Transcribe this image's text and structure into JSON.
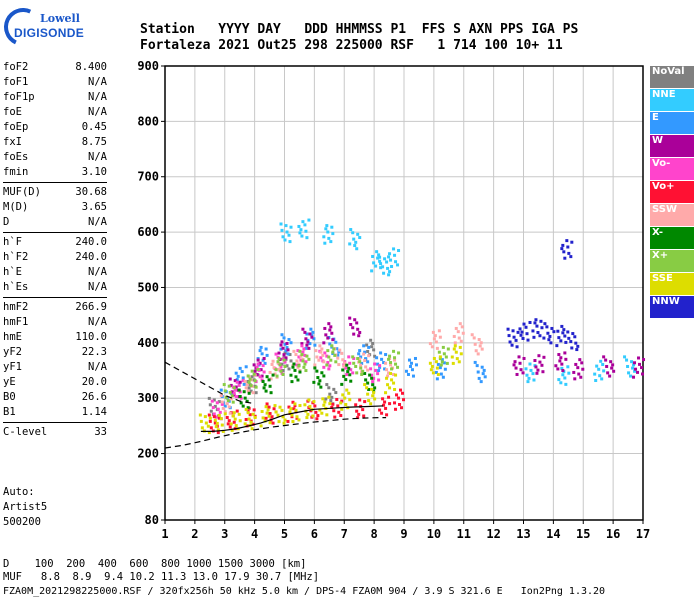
{
  "logo": {
    "top": "Lowell",
    "main": "DIGISONDE"
  },
  "header": {
    "row1": "Station   YYYY DAY   DDD HHMMSS P1  FFS S AXN PPS IGA PS",
    "row2": "Fortaleza 2021 Out25 298 225000 RSF   1 714 100 10+ 11"
  },
  "params": [
    {
      "k": "foF2",
      "v": "8.400"
    },
    {
      "k": "foF1",
      "v": "N/A"
    },
    {
      "k": "foF1p",
      "v": "N/A"
    },
    {
      "k": "foE",
      "v": "N/A"
    },
    {
      "k": "foEp",
      "v": "0.45"
    },
    {
      "k": "fxI",
      "v": "8.75"
    },
    {
      "k": "foEs",
      "v": "N/A"
    },
    {
      "k": "fmin",
      "v": "3.10"
    },
    {
      "rule": true
    },
    {
      "k": "MUF(D)",
      "v": "30.68"
    },
    {
      "k": "M(D)",
      "v": "3.65"
    },
    {
      "k": "D",
      "v": "N/A"
    },
    {
      "rule": true
    },
    {
      "k": "h`F",
      "v": "240.0"
    },
    {
      "k": "h`F2",
      "v": "240.0"
    },
    {
      "k": "h`E",
      "v": "N/A"
    },
    {
      "k": "h`Es",
      "v": "N/A"
    },
    {
      "rule": true
    },
    {
      "k": "hmF2",
      "v": "266.9"
    },
    {
      "k": "hmF1",
      "v": "N/A"
    },
    {
      "k": "hmE",
      "v": "110.0"
    },
    {
      "k": "yF2",
      "v": "22.3"
    },
    {
      "k": "yF1",
      "v": "N/A"
    },
    {
      "k": "yE",
      "v": "20.0"
    },
    {
      "k": "B0",
      "v": "26.6"
    },
    {
      "k": "B1",
      "v": "1.14"
    },
    {
      "rule": true
    },
    {
      "k": "C-level",
      "v": "33"
    }
  ],
  "auto": [
    "Auto:",
    "Artist5",
    "500200"
  ],
  "bottom": {
    "d_row": "D    100  200  400  600  800 1000 1500 3000 [km]",
    "muf_row": "MUF   8.8  8.9  9.4 10.2 11.3 13.0 17.9 30.7 [MHz]",
    "footer": "FZA0M_2021298225000.RSF / 320fx256h 50 kHz 5.0 km / DPS-4 FZA0M 904 / 3.9 S 321.6 E   Ion2Png 1.3.20"
  },
  "legend": [
    {
      "label": "NoVal",
      "color": "#808080"
    },
    {
      "label": "NNE",
      "color": "#33ccff"
    },
    {
      "label": "E",
      "color": "#3399ff"
    },
    {
      "label": "W",
      "color": "#aa0099"
    },
    {
      "label": "Vo-",
      "color": "#ff44cc"
    },
    {
      "label": "Vo+",
      "color": "#ff1133"
    },
    {
      "label": "SSW",
      "color": "#ffaaaa"
    },
    {
      "label": "X-",
      "color": "#008800"
    },
    {
      "label": "X+",
      "color": "#88cc44"
    },
    {
      "label": "SSE",
      "color": "#dddd00"
    },
    {
      "label": "NNW",
      "color": "#2222cc"
    }
  ],
  "chart_data": {
    "type": "scatter",
    "xlabel": "",
    "ylabel": "",
    "xlim": [
      1,
      17
    ],
    "ylim": [
      80,
      900
    ],
    "x_ticks": [
      1,
      2,
      3,
      4,
      5,
      6,
      7,
      8,
      9,
      10,
      11,
      12,
      13,
      14,
      15,
      16,
      17
    ],
    "y_ticks": [
      80,
      200,
      300,
      400,
      500,
      600,
      700,
      800,
      900
    ],
    "grid": true,
    "series": [
      {
        "name": "NoVal",
        "color": "#808080",
        "x": [
          2.6,
          3.9,
          5.0,
          6.5,
          7.8
        ],
        "y": [
          285,
          330,
          370,
          310,
          390
        ]
      },
      {
        "name": "NNE",
        "color": "#33ccff",
        "x": [
          5.0,
          5.6,
          6.4,
          7.3,
          8.0,
          8.3,
          8.6,
          13.2,
          14.3,
          15.5,
          16.5
        ],
        "y": [
          600,
          610,
          600,
          590,
          550,
          540,
          555,
          350,
          345,
          352,
          360
        ]
      },
      {
        "name": "E",
        "color": "#3399ff",
        "x": [
          3.0,
          3.5,
          4.2,
          5.0,
          5.8,
          6.6,
          7.6,
          8.2,
          9.2,
          10.2,
          11.5
        ],
        "y": [
          300,
          345,
          380,
          400,
          410,
          395,
          380,
          370,
          360,
          355,
          350
        ]
      },
      {
        "name": "W",
        "color": "#aa0099",
        "x": [
          3.3,
          4.1,
          4.9,
          5.7,
          6.4,
          7.3,
          12.8,
          13.5,
          14.2,
          14.8,
          15.8,
          16.8
        ],
        "y": [
          320,
          360,
          390,
          410,
          420,
          430,
          360,
          365,
          370,
          355,
          360,
          358
        ]
      },
      {
        "name": "Vo-",
        "color": "#ff44cc",
        "x": [
          2.7,
          3.4,
          4.1,
          4.8,
          5.5,
          6.3,
          7.1,
          8.0
        ],
        "y": [
          280,
          320,
          350,
          365,
          380,
          370,
          360,
          350
        ]
      },
      {
        "name": "Vo+",
        "color": "#ff1133",
        "x": [
          2.6,
          3.2,
          3.8,
          4.5,
          5.2,
          5.9,
          6.7,
          7.5,
          8.3,
          8.8
        ],
        "y": [
          255,
          265,
          270,
          275,
          278,
          280,
          283,
          285,
          290,
          300
        ]
      },
      {
        "name": "SSW",
        "color": "#ffaaaa",
        "x": [
          3.0,
          3.8,
          4.6,
          5.4,
          6.1,
          6.8,
          7.6,
          8.5,
          10.0,
          10.8,
          11.4
        ],
        "y": [
          290,
          330,
          355,
          370,
          380,
          375,
          365,
          360,
          410,
          420,
          400
        ]
      },
      {
        "name": "X-",
        "color": "#008800",
        "x": [
          3.6,
          4.4,
          5.3,
          6.1,
          7.0,
          7.8
        ],
        "y": [
          300,
          330,
          350,
          340,
          345,
          330
        ]
      },
      {
        "name": "X+",
        "color": "#88cc44",
        "x": [
          3.1,
          3.9,
          4.8,
          5.6,
          6.5,
          7.4,
          8.6,
          10.3
        ],
        "y": [
          310,
          340,
          360,
          370,
          380,
          360,
          370,
          380
        ]
      },
      {
        "name": "SSE",
        "color": "#dddd00",
        "x": [
          2.3,
          2.8,
          3.3,
          3.8,
          4.3,
          4.8,
          5.3,
          5.8,
          6.3,
          7.0,
          7.8,
          8.5,
          10.0,
          10.7
        ],
        "y": [
          255,
          260,
          262,
          265,
          270,
          272,
          275,
          285,
          290,
          300,
          310,
          330,
          360,
          380
        ]
      },
      {
        "name": "NNW",
        "color": "#2222cc",
        "x": [
          12.6,
          13.0,
          13.4,
          13.8,
          14.2,
          14.6,
          14.4
        ],
        "y": [
          410,
          425,
          430,
          420,
          415,
          405,
          570
        ]
      }
    ],
    "traces": [
      {
        "name": "o-trace",
        "x": [
          1.0,
          1.6,
          2.2,
          2.8,
          3.4,
          4.0,
          4.6,
          5.2,
          5.8,
          6.4,
          7.0,
          7.6,
          8.2,
          8.4
        ],
        "y": [
          210,
          215,
          222,
          230,
          237,
          243,
          248,
          252,
          256,
          259,
          262,
          264,
          265,
          265
        ]
      },
      {
        "name": "profile",
        "x": [
          2.2,
          2.6,
          3.0,
          3.4,
          3.8,
          4.2,
          4.6,
          5.0,
          5.5,
          6.0,
          6.6,
          7.2,
          7.8,
          8.3
        ],
        "y": [
          240,
          240,
          242,
          245,
          250,
          255,
          262,
          270,
          275,
          280,
          282,
          284,
          285,
          286
        ]
      },
      {
        "name": "upper",
        "x": [
          1.0,
          1.5,
          2.0,
          2.5,
          3.0,
          3.5,
          4.0
        ],
        "y": [
          365,
          350,
          335,
          320,
          305,
          295,
          290
        ]
      }
    ]
  }
}
